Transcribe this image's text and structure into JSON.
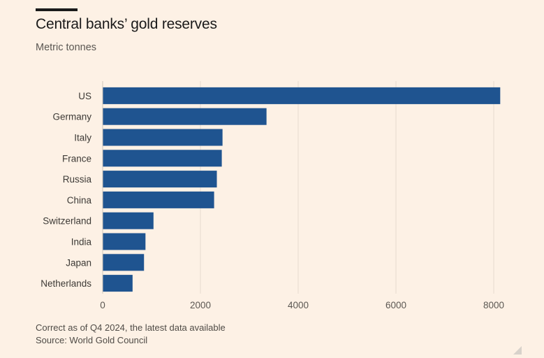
{
  "header": {
    "title": "Central banks’ gold reserves",
    "subtitle": "Metric tonnes"
  },
  "footer": {
    "note": "Correct as of Q4 2024, the latest data available",
    "source": "Source: World Gold Council"
  },
  "colors": {
    "background": "#fdf1e5",
    "bar": "#1f5490",
    "grid": "#e6dccf"
  },
  "chart_data": {
    "type": "bar",
    "orientation": "horizontal",
    "title": "Central banks’ gold reserves",
    "subtitle": "Metric tonnes",
    "categories": [
      "US",
      "Germany",
      "Italy",
      "France",
      "Russia",
      "China",
      "Switzerland",
      "India",
      "Japan",
      "Netherlands"
    ],
    "values": [
      8133,
      3352,
      2452,
      2437,
      2336,
      2280,
      1040,
      876,
      846,
      612
    ],
    "x_ticks": [
      0,
      2000,
      4000,
      6000,
      8000
    ],
    "xlim": [
      0,
      8200
    ],
    "grid": true
  }
}
